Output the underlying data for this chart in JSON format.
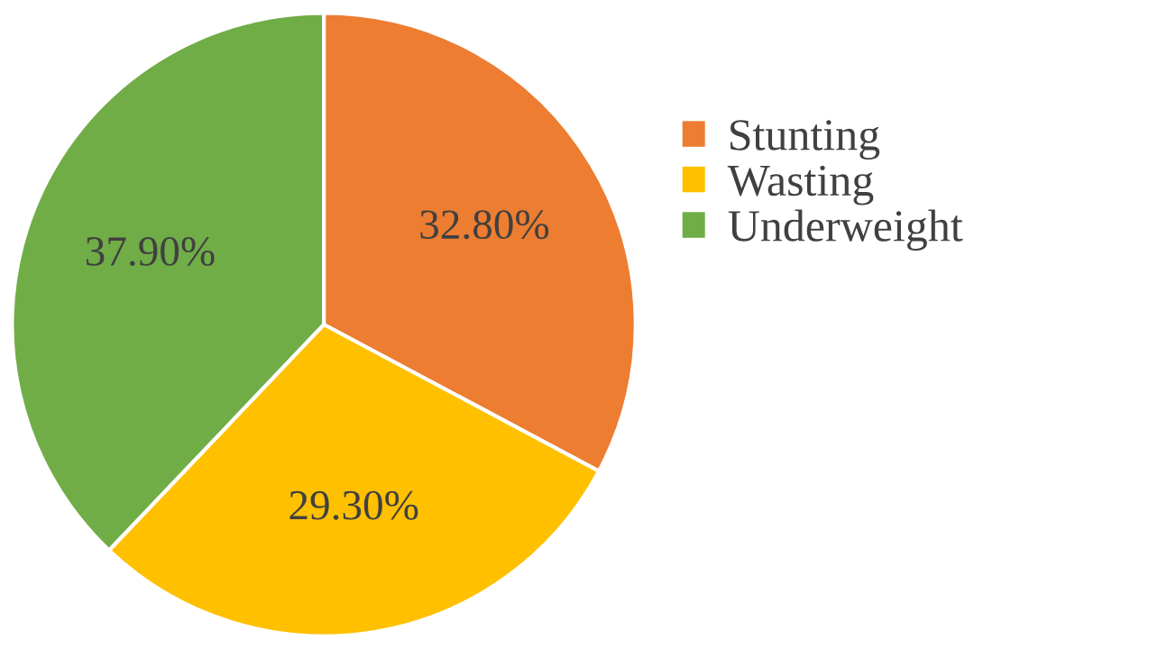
{
  "chart_data": {
    "type": "pie",
    "categories": [
      "Stunting",
      "Wasting",
      "Underweight"
    ],
    "values": [
      32.8,
      29.3,
      37.9
    ],
    "colors": [
      "#ed7d31",
      "#ffc000",
      "#70ad47"
    ],
    "value_labels": [
      "32.80%",
      "29.30%",
      "37.90%"
    ],
    "legend": "right"
  }
}
